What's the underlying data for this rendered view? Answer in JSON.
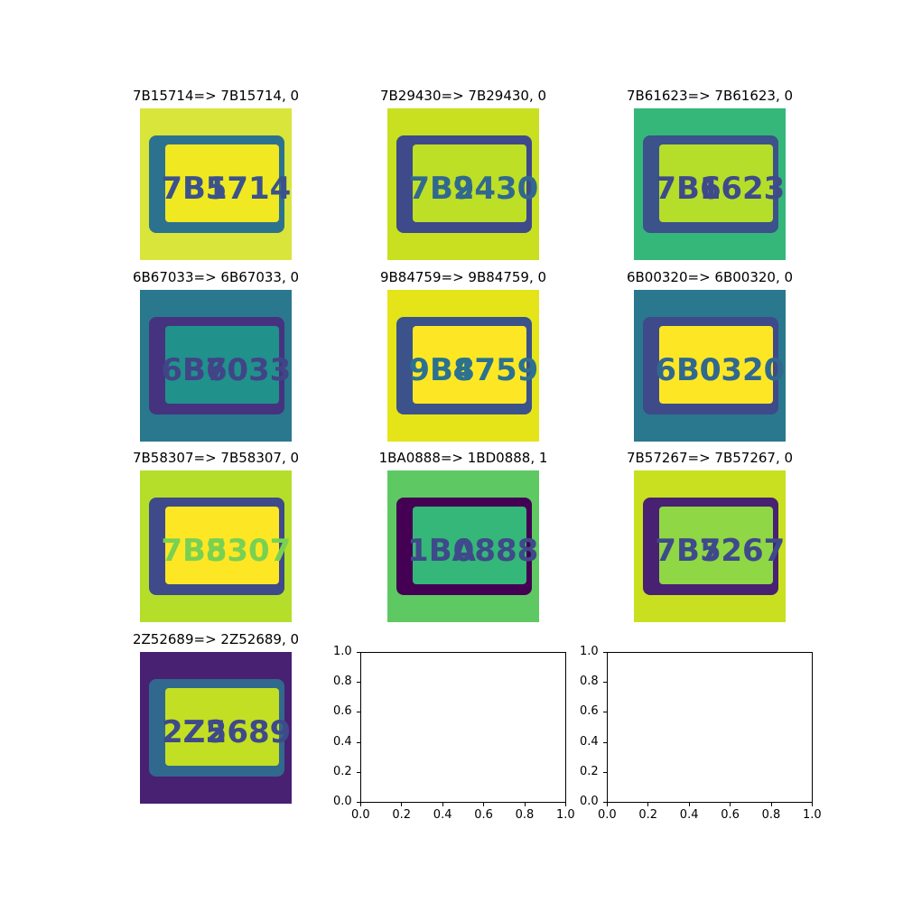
{
  "chart_data": {
    "type": "image_grid",
    "panels": [
      {
        "label": "7B15714=> 7B15714, 0",
        "plate_left": "7B1",
        "plate_right": "5714",
        "plate_text": "7B15714",
        "predicted": "7B15714",
        "errors": 0,
        "colors": {
          "bg": "#d9e53a",
          "plate": "#f0e922",
          "text": "#3b528b",
          "border": "#2c728e"
        }
      },
      {
        "label": "7B29430=> 7B29430, 0",
        "plate_left": "7B2",
        "plate_right": "9430",
        "plate_text": "7B29430",
        "predicted": "7B29430",
        "errors": 0,
        "colors": {
          "bg": "#c8e020",
          "plate": "#bddf26",
          "text": "#31688e",
          "border": "#3e4a89"
        }
      },
      {
        "label": "7B61623=> 7B61623, 0",
        "plate_left": "7B6",
        "plate_right": "1623",
        "plate_text": "7B61623",
        "predicted": "7B61623",
        "errors": 0,
        "colors": {
          "bg": "#35b779",
          "plate": "#b5de2b",
          "text": "#3e4a89",
          "border": "#3b528b"
        }
      },
      {
        "label": "6B67033=> 6B67033, 0",
        "plate_left": "6B6",
        "plate_right": "7033",
        "plate_text": "6B67033",
        "predicted": "6B67033",
        "errors": 0,
        "colors": {
          "bg": "#2a788e",
          "plate": "#21918c",
          "text": "#414487",
          "border": "#46337f"
        }
      },
      {
        "label": "9B84759=> 9B84759, 0",
        "plate_left": "9B8",
        "plate_right": "4759",
        "plate_text": "9B84759",
        "predicted": "9B84759",
        "errors": 0,
        "colors": {
          "bg": "#e5e419",
          "plate": "#fde725",
          "text": "#2c728e",
          "border": "#3b528b"
        }
      },
      {
        "label": "6B00320=> 6B00320, 0",
        "plate_left": "6B0",
        "plate_right": "0320",
        "plate_text": "6B00320",
        "predicted": "6B00320",
        "errors": 0,
        "colors": {
          "bg": "#2a788e",
          "plate": "#fde725",
          "text": "#31688e",
          "border": "#3e4a89"
        }
      },
      {
        "label": "7B58307=> 7B58307, 0",
        "plate_left": "7B5",
        "plate_right": "8307",
        "plate_text": "7B58307",
        "predicted": "7B58307",
        "errors": 0,
        "colors": {
          "bg": "#b5de2b",
          "plate": "#fde725",
          "text": "#7ad151",
          "border": "#3e4a89"
        }
      },
      {
        "label": "1BA0888=> 1BD0888, 1",
        "plate_left": "1BA",
        "plate_right": "0888",
        "plate_text": "1BA0888",
        "predicted": "1BD0888",
        "errors": 1,
        "colors": {
          "bg": "#5ec962",
          "plate": "#35b779",
          "text": "#3e4a89",
          "border": "#440154"
        }
      },
      {
        "label": "7B57267=> 7B57267, 0",
        "plate_left": "7B5",
        "plate_right": "7267",
        "plate_text": "7B57267",
        "predicted": "7B57267",
        "errors": 0,
        "colors": {
          "bg": "#c8e020",
          "plate": "#8fd744",
          "text": "#3e4a89",
          "border": "#482173"
        }
      },
      {
        "label": "2Z52689=> 2Z52689, 0",
        "plate_left": "2Z5",
        "plate_right": "2689",
        "plate_text": "2Z52689",
        "predicted": "2Z52689",
        "errors": 0,
        "colors": {
          "bg": "#482173",
          "plate": "#c2df23",
          "text": "#3e4a89",
          "border": "#31688e"
        }
      }
    ],
    "empty_axes": [
      {
        "xlim": [
          0.0,
          1.0
        ],
        "ylim": [
          0.0,
          1.0
        ],
        "xticks": [
          "0.0",
          "0.2",
          "0.4",
          "0.6",
          "0.8",
          "1.0"
        ],
        "yticks": [
          "0.0",
          "0.2",
          "0.4",
          "0.6",
          "0.8",
          "1.0"
        ]
      },
      {
        "xlim": [
          0.0,
          1.0
        ],
        "ylim": [
          0.0,
          1.0
        ],
        "xticks": [
          "0.0",
          "0.2",
          "0.4",
          "0.6",
          "0.8",
          "1.0"
        ],
        "yticks": [
          "0.0",
          "0.2",
          "0.4",
          "0.6",
          "0.8",
          "1.0"
        ]
      }
    ]
  }
}
